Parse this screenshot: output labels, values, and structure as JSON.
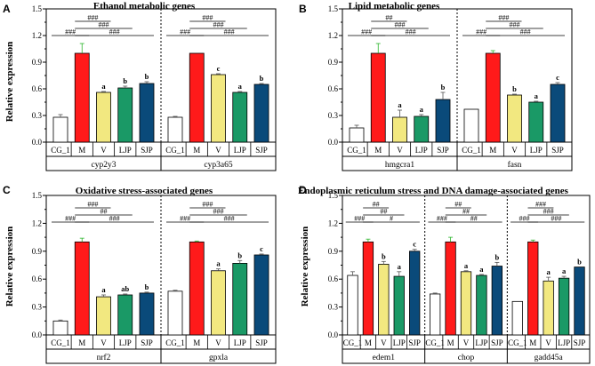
{
  "chart_data": [
    {
      "type": "bar",
      "panel": "A",
      "title": "Ethanol metabolic genes",
      "ylabel": "Relative expression",
      "ylim": [
        0,
        1.5
      ],
      "yticks": [
        "0.0",
        "0.3",
        "0.6",
        "0.9",
        "1.2",
        "1.5"
      ],
      "categories": [
        "CG_1",
        "M",
        "V",
        "LJP",
        "SJP"
      ],
      "groups": [
        {
          "gene": "cyp2y3",
          "values": [
            0.28,
            1.0,
            0.56,
            0.61,
            0.66
          ],
          "errors": [
            0.03,
            0.11,
            0.01,
            0.02,
            0.02
          ],
          "letters": [
            "",
            "",
            "a",
            "b",
            "b"
          ],
          "sig": [
            {
              "text": "###",
              "from": 0,
              "to": 1
            },
            {
              "text": "###",
              "from": 1,
              "to": 2
            },
            {
              "text": "###",
              "from": 1,
              "to": 3
            },
            {
              "text": "###",
              "from": 1,
              "to": 4
            }
          ]
        },
        {
          "gene": "cyp3a65",
          "values": [
            0.28,
            1.0,
            0.76,
            0.56,
            0.65
          ],
          "errors": [
            0.01,
            0.0,
            0.01,
            0.01,
            0.01
          ],
          "letters": [
            "",
            "",
            "c",
            "a",
            "b"
          ],
          "sig": [
            {
              "text": "###",
              "from": 0,
              "to": 1
            },
            {
              "text": "###",
              "from": 1,
              "to": 2
            },
            {
              "text": "###",
              "from": 1,
              "to": 3
            },
            {
              "text": "###",
              "from": 1,
              "to": 4
            }
          ]
        }
      ]
    },
    {
      "type": "bar",
      "panel": "B",
      "title": "Lipid metabolic genes",
      "ylabel": "",
      "ylim": [
        0,
        1.5
      ],
      "yticks": [
        "0.0",
        "0.3",
        "0.6",
        "0.9",
        "1.2",
        "1.5"
      ],
      "categories": [
        "CG_1",
        "M",
        "V",
        "LJP",
        "SJP"
      ],
      "groups": [
        {
          "gene": "hmgcra1",
          "values": [
            0.16,
            1.0,
            0.28,
            0.29,
            0.48
          ],
          "errors": [
            0.03,
            0.11,
            0.08,
            0.02,
            0.08
          ],
          "letters": [
            "",
            "",
            "a",
            "a",
            "b"
          ],
          "sig": [
            {
              "text": "###",
              "from": 0,
              "to": 1
            },
            {
              "text": "##",
              "from": 1,
              "to": 2
            },
            {
              "text": "###",
              "from": 1,
              "to": 3
            },
            {
              "text": "###",
              "from": 1,
              "to": 4
            }
          ]
        },
        {
          "gene": "fasn",
          "values": [
            0.37,
            1.0,
            0.53,
            0.45,
            0.65
          ],
          "errors": [
            0.0,
            0.03,
            0.01,
            0.01,
            0.02
          ],
          "letters": [
            "",
            "",
            "b",
            "a",
            "c"
          ],
          "sig": [
            {
              "text": "###",
              "from": 0,
              "to": 1
            },
            {
              "text": "###",
              "from": 1,
              "to": 2
            },
            {
              "text": "###",
              "from": 1,
              "to": 3
            },
            {
              "text": "###",
              "from": 1,
              "to": 4
            }
          ]
        }
      ]
    },
    {
      "type": "bar",
      "panel": "C",
      "title": "Oxidative stress-associated genes",
      "ylabel": "Relative expression",
      "ylim": [
        0,
        1.5
      ],
      "yticks": [
        "0.0",
        "0.3",
        "0.6",
        "0.9",
        "1.2",
        "1.5"
      ],
      "categories": [
        "CG_1",
        "M",
        "V",
        "LJP",
        "SJP"
      ],
      "groups": [
        {
          "gene": "nrf2",
          "values": [
            0.15,
            1.0,
            0.41,
            0.43,
            0.45
          ],
          "errors": [
            0.01,
            0.04,
            0.02,
            0.01,
            0.01
          ],
          "letters": [
            "",
            "",
            "a",
            "ab",
            "b"
          ],
          "sig": [
            {
              "text": "###",
              "from": 0,
              "to": 1
            },
            {
              "text": "###",
              "from": 1,
              "to": 2
            },
            {
              "text": "##",
              "from": 1,
              "to": 3
            },
            {
              "text": "###",
              "from": 1,
              "to": 4
            }
          ]
        },
        {
          "gene": "gpxla",
          "values": [
            0.47,
            1.0,
            0.69,
            0.77,
            0.86
          ],
          "errors": [
            0.01,
            0.01,
            0.02,
            0.03,
            0.01
          ],
          "letters": [
            "",
            "",
            "a",
            "b",
            "c"
          ],
          "sig": [
            {
              "text": "###",
              "from": 0,
              "to": 1
            },
            {
              "text": "###",
              "from": 1,
              "to": 2
            },
            {
              "text": "###",
              "from": 1,
              "to": 3
            },
            {
              "text": "###",
              "from": 1,
              "to": 4
            }
          ]
        }
      ]
    },
    {
      "type": "bar",
      "panel": "D",
      "title": "Endoplasmic reticulum stress and DNA damage-associated genes",
      "ylabel": "Relative expression",
      "ylim": [
        0,
        1.5
      ],
      "yticks": [
        "0.0",
        "0.3",
        "0.6",
        "0.9",
        "1.2",
        "1.5"
      ],
      "categories": [
        "CG_1",
        "M",
        "V",
        "LJP",
        "SJP"
      ],
      "groups": [
        {
          "gene": "edem1",
          "values": [
            0.64,
            1.0,
            0.76,
            0.63,
            0.9
          ],
          "errors": [
            0.04,
            0.03,
            0.03,
            0.05,
            0.02
          ],
          "letters": [
            "",
            "",
            "b",
            "a",
            "c"
          ],
          "sig": [
            {
              "text": "###",
              "from": 0,
              "to": 1
            },
            {
              "text": "##",
              "from": 1,
              "to": 2
            },
            {
              "text": "##",
              "from": 1,
              "to": 3
            },
            {
              "text": "#",
              "from": 1,
              "to": 4
            }
          ]
        },
        {
          "gene": "chop",
          "values": [
            0.44,
            1.0,
            0.68,
            0.64,
            0.74
          ],
          "errors": [
            0.01,
            0.05,
            0.01,
            0.01,
            0.04
          ],
          "letters": [
            "",
            "",
            "a",
            "a",
            "b"
          ],
          "sig": [
            {
              "text": "###",
              "from": 0,
              "to": 1
            },
            {
              "text": "##",
              "from": 1,
              "to": 2
            },
            {
              "text": "##",
              "from": 1,
              "to": 3
            },
            {
              "text": "##",
              "from": 1,
              "to": 4
            }
          ]
        },
        {
          "gene": "gadd45a",
          "values": [
            0.36,
            1.0,
            0.58,
            0.61,
            0.73
          ],
          "errors": [
            0.0,
            0.02,
            0.04,
            0.02,
            0.0
          ],
          "letters": [
            "",
            "",
            "a",
            "a",
            "b"
          ],
          "sig": [
            {
              "text": "###",
              "from": 0,
              "to": 1
            },
            {
              "text": "###",
              "from": 1,
              "to": 2
            },
            {
              "text": "###",
              "from": 1,
              "to": 3
            },
            {
              "text": "###",
              "from": 1,
              "to": 4
            }
          ]
        }
      ]
    }
  ],
  "colors": {
    "CG_1": "#ffffff",
    "M": "#ff1a1a",
    "V": "#f2e880",
    "LJP": "#1a9966",
    "SJP": "#0a4a7a",
    "errorbar_M": "#2bb52b"
  }
}
